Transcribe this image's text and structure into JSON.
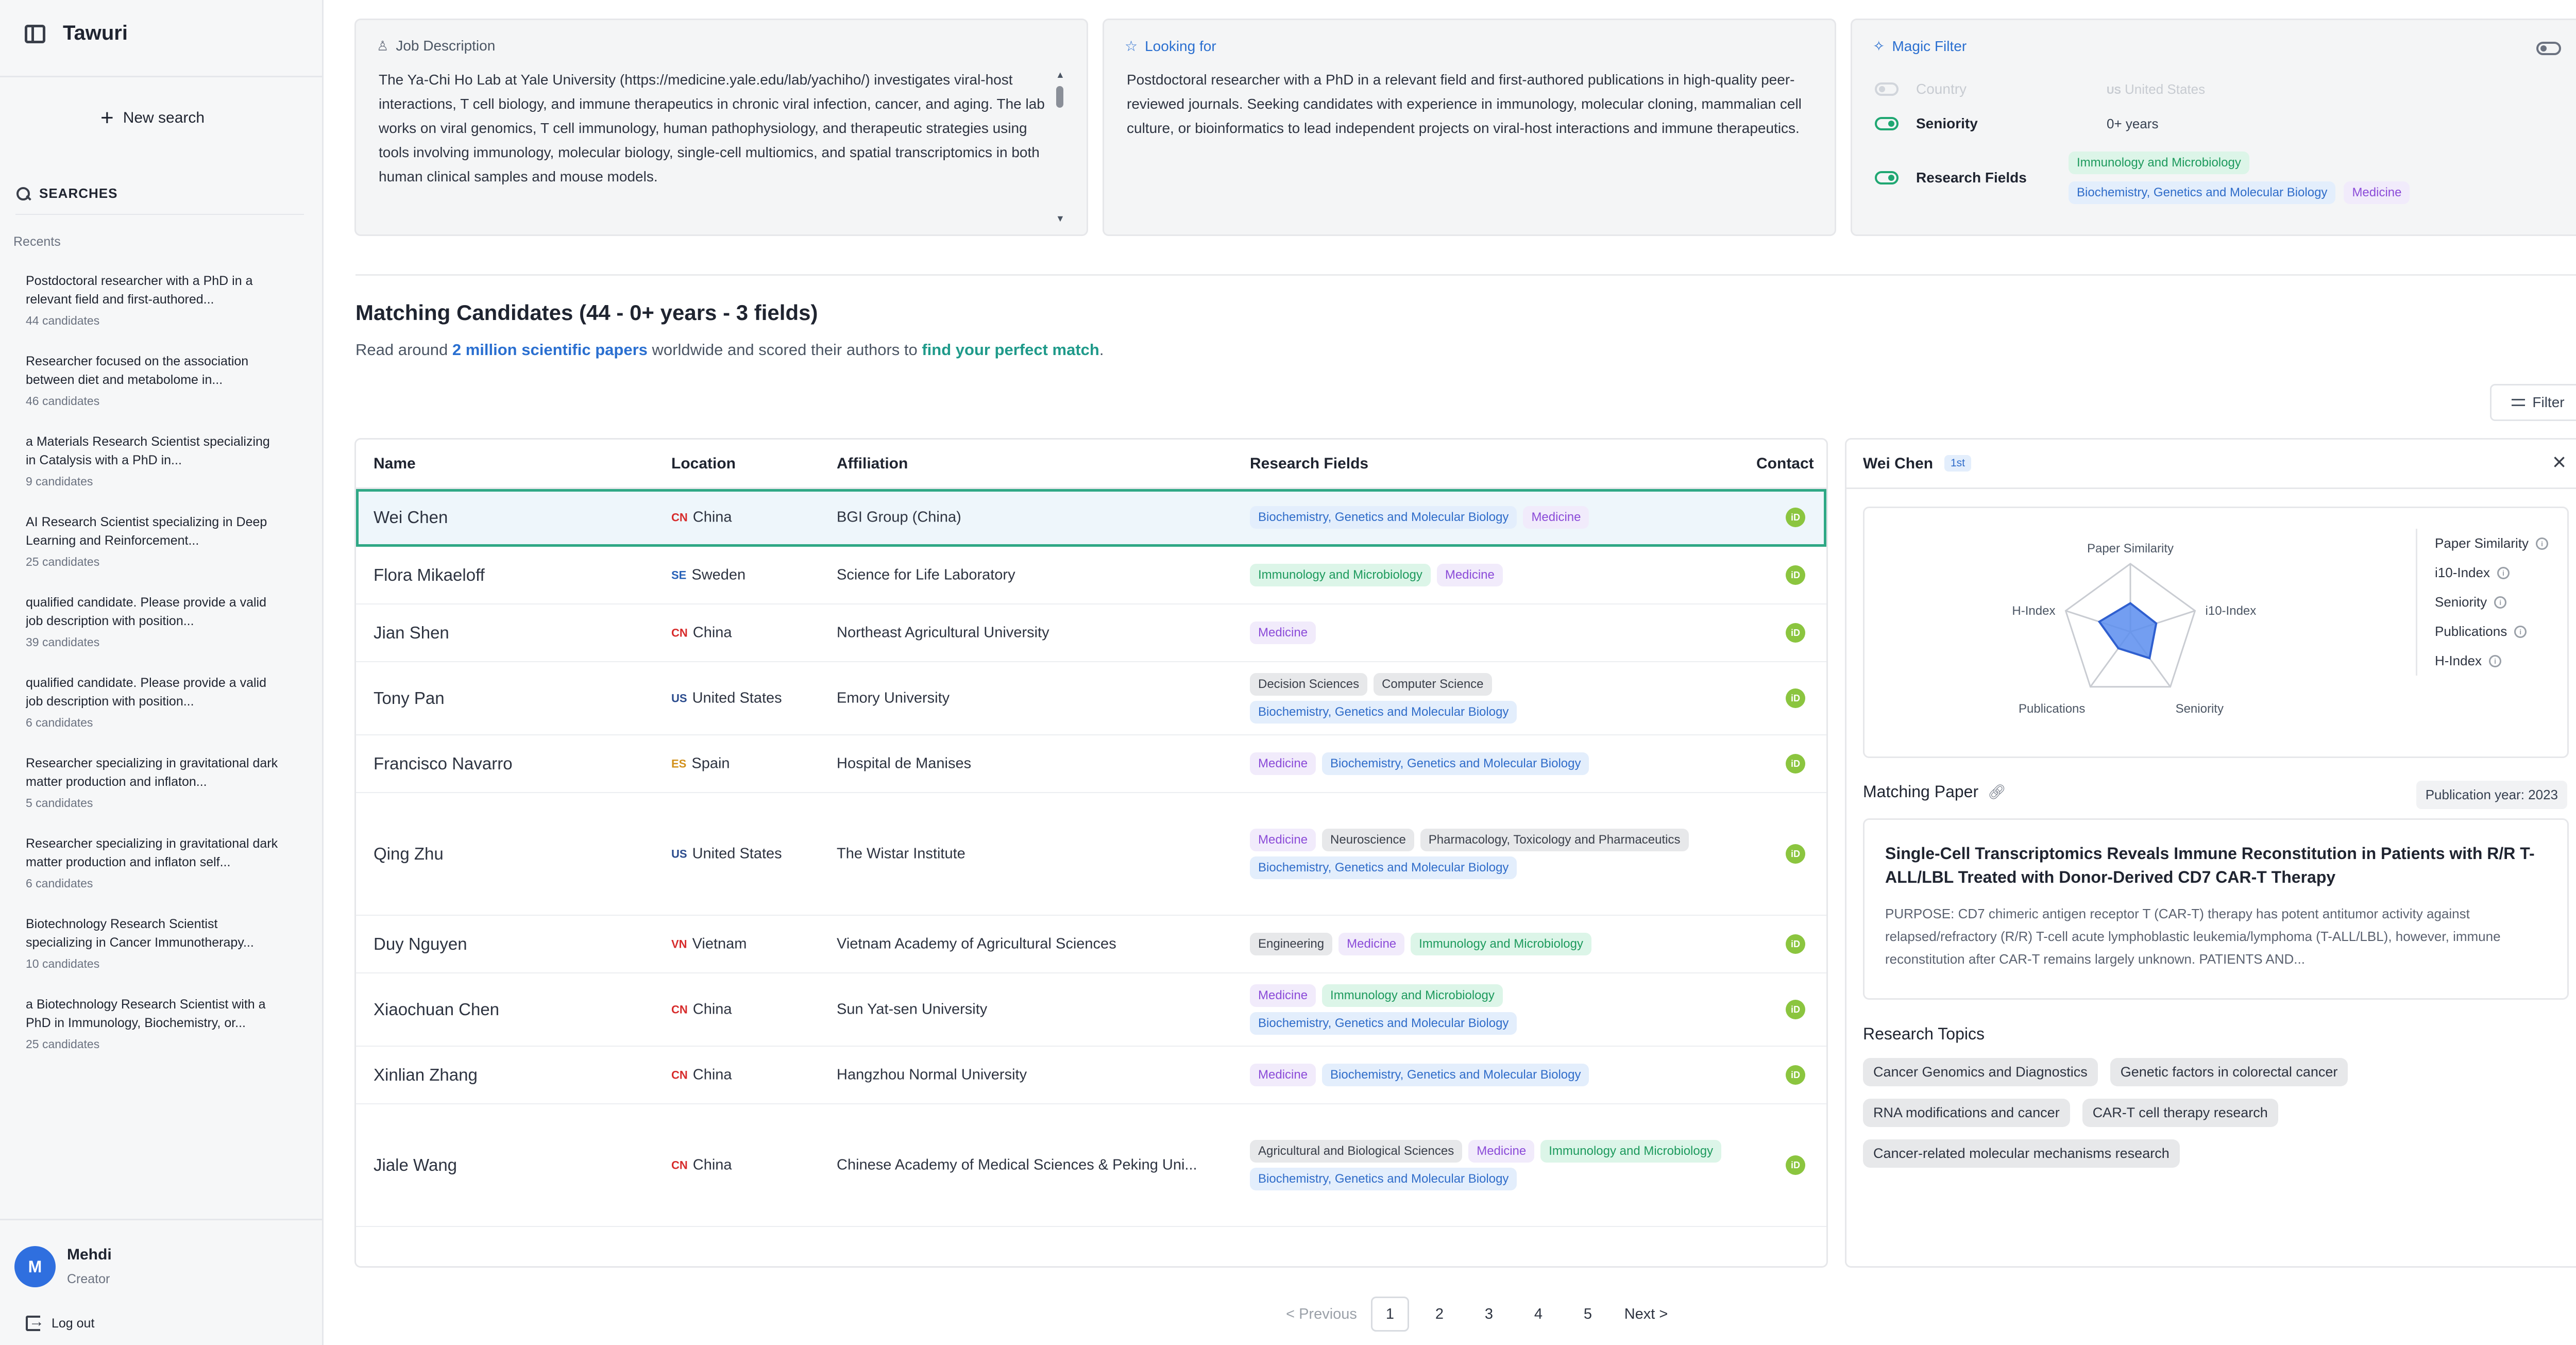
{
  "app": {
    "title": "Tawuri"
  },
  "sidebar": {
    "new_search": "New search",
    "searches_header": "SEARCHES",
    "recents_label": "Recents",
    "recents": [
      {
        "title": "Postdoctoral researcher with a PhD in a relevant field and first-authored...",
        "count": "44 candidates"
      },
      {
        "title": "Researcher focused on the association between diet and metabolome in...",
        "count": "46 candidates"
      },
      {
        "title": "a Materials Research Scientist specializing in Catalysis with a PhD in...",
        "count": "9 candidates"
      },
      {
        "title": "AI Research Scientist specializing in Deep Learning and Reinforcement...",
        "count": "25 candidates"
      },
      {
        "title": "qualified candidate. Please provide a valid job description with position...",
        "count": "39 candidates"
      },
      {
        "title": "qualified candidate. Please provide a valid job description with position...",
        "count": "6 candidates"
      },
      {
        "title": "Researcher specializing in gravitational dark matter production and inflaton...",
        "count": "5 candidates"
      },
      {
        "title": "Researcher specializing in gravitational dark matter production and inflaton self...",
        "count": "6 candidates"
      },
      {
        "title": "Biotechnology Research Scientist specializing in Cancer Immunotherapy...",
        "count": "10 candidates"
      },
      {
        "title": "a Biotechnology Research Scientist with a PhD in Immunology, Biochemistry, or...",
        "count": "25 candidates"
      }
    ],
    "user": {
      "initial": "M",
      "name": "Mehdi",
      "role": "Creator"
    },
    "logout": "Log out"
  },
  "job_description": {
    "title": "Job Description",
    "text": "The Ya-Chi Ho Lab at Yale University (https://medicine.yale.edu/lab/yachiho/) investigates viral-host interactions, T cell biology, and immune therapeutics in chronic viral infection, cancer, and aging. The lab works on viral genomics, T cell immunology, human pathophysiology, and therapeutic strategies using tools involving immunology, molecular biology, single-cell multiomics, and spatial transcriptomics in both human clinical samples and mouse models."
  },
  "looking_for": {
    "title": "Looking for",
    "text": "Postdoctoral researcher with a PhD in a relevant field and first-authored publications in high-quality peer-reviewed journals. Seeking candidates with experience in immunology, molecular cloning, mammalian cell culture, or bioinformatics to lead independent projects on viral-host interactions and immune therapeutics."
  },
  "magic_filter": {
    "title": "Magic Filter",
    "country_label": "Country",
    "country_flag": "US",
    "country_value": "United States",
    "seniority_label": "Seniority",
    "seniority_value": "0+ years",
    "fields_label": "Research Fields",
    "fields": [
      {
        "label": "Immunology and Microbiology",
        "color": "green"
      },
      {
        "label": "Biochemistry, Genetics and Molecular Biology",
        "color": "blue"
      },
      {
        "label": "Medicine",
        "color": "purple"
      }
    ]
  },
  "main": {
    "title": "Matching Candidates (44 - 0+ years - 3 fields)",
    "sub_prefix": "Read around ",
    "sub_highlight1": "2 million scientific papers",
    "sub_middle": " worldwide and scored their authors to ",
    "sub_highlight2": "find your perfect match",
    "sub_suffix": ".",
    "filter_label": "Filter"
  },
  "table": {
    "headers": {
      "name": "Name",
      "location": "Location",
      "affiliation": "Affiliation",
      "fields": "Research Fields",
      "contact": "Contact"
    },
    "contact_badge": "iD",
    "rows": [
      {
        "name": "Wei Chen",
        "flag": "CN",
        "flag_class": "cn",
        "location": "China",
        "affiliation": "BGI Group (China)",
        "fields": [
          [
            "Biochemistry, Genetics and Molecular Biology",
            "blue"
          ],
          [
            "Medicine",
            "purple"
          ]
        ],
        "selected": true
      },
      {
        "name": "Flora Mikaeloff",
        "flag": "SE",
        "flag_class": "se",
        "location": "Sweden",
        "affiliation": "Science for Life Laboratory",
        "fields": [
          [
            "Immunology and Microbiology",
            "green"
          ],
          [
            "Medicine",
            "purple"
          ]
        ]
      },
      {
        "name": "Jian Shen",
        "flag": "CN",
        "flag_class": "cn",
        "location": "China",
        "affiliation": "Northeast Agricultural University",
        "fields": [
          [
            "Medicine",
            "purple"
          ]
        ]
      },
      {
        "name": "Tony Pan",
        "flag": "US",
        "flag_class": "us",
        "location": "United States",
        "affiliation": "Emory University",
        "fields": [
          [
            "Decision Sciences",
            "gray"
          ],
          [
            "Computer Science",
            "gray"
          ],
          [
            "Biochemistry, Genetics and Molecular Biology",
            "blue"
          ]
        ]
      },
      {
        "name": "Francisco Navarro",
        "flag": "ES",
        "flag_class": "es",
        "location": "Spain",
        "affiliation": "Hospital de Manises",
        "fields": [
          [
            "Medicine",
            "purple"
          ],
          [
            "Biochemistry, Genetics and Molecular Biology",
            "blue"
          ]
        ]
      },
      {
        "name": "Qing Zhu",
        "flag": "US",
        "flag_class": "us",
        "location": "United States",
        "affiliation": "The Wistar Institute",
        "fields": [
          [
            "Medicine",
            "purple"
          ],
          [
            "Neuroscience",
            "gray"
          ],
          [
            "Pharmacology, Toxicology and Pharmaceutics",
            "gray"
          ],
          [
            "Biochemistry, Genetics and Molecular Biology",
            "blue"
          ]
        ]
      },
      {
        "name": "Duy Nguyen",
        "flag": "VN",
        "flag_class": "vn",
        "location": "Vietnam",
        "affiliation": "Vietnam Academy of Agricultural Sciences",
        "fields": [
          [
            "Engineering",
            "gray"
          ],
          [
            "Medicine",
            "purple"
          ],
          [
            "Immunology and Microbiology",
            "green"
          ]
        ]
      },
      {
        "name": "Xiaochuan Chen",
        "flag": "CN",
        "flag_class": "cn",
        "location": "China",
        "affiliation": "Sun Yat-sen University",
        "fields": [
          [
            "Medicine",
            "purple"
          ],
          [
            "Immunology and Microbiology",
            "green"
          ],
          [
            "Biochemistry, Genetics and Molecular Biology",
            "blue"
          ]
        ]
      },
      {
        "name": "Xinlian Zhang",
        "flag": "CN",
        "flag_class": "cn",
        "location": "China",
        "affiliation": "Hangzhou Normal University",
        "fields": [
          [
            "Medicine",
            "purple"
          ],
          [
            "Biochemistry, Genetics and Molecular Biology",
            "blue"
          ]
        ]
      },
      {
        "name": "Jiale Wang",
        "flag": "CN",
        "flag_class": "cn",
        "location": "China",
        "affiliation": "Chinese Academy of Medical Sciences & Peking Uni...",
        "fields": [
          [
            "Agricultural and Biological Sciences",
            "gray"
          ],
          [
            "Medicine",
            "purple"
          ],
          [
            "Immunology and Microbiology",
            "green"
          ],
          [
            "Biochemistry, Genetics and Molecular Biology",
            "blue"
          ]
        ]
      }
    ]
  },
  "detail": {
    "name": "Wei Chen",
    "badge": "1st",
    "radar": {
      "axes": [
        "Paper Similarity",
        "i10-Index",
        "Seniority",
        "Publications",
        "H-Index"
      ],
      "values": [
        0.42,
        0.4,
        0.48,
        0.3,
        0.48
      ]
    },
    "legend": [
      "Paper Similarity",
      "i10-Index",
      "Seniority",
      "Publications",
      "H-Index"
    ],
    "info_glyph": "i",
    "matching_paper_label": "Matching Paper",
    "publication_year": "Publication year: 2023",
    "paper_title": "Single-Cell Transcriptomics Reveals Immune Reconstitution in Patients with R/R T-ALL/LBL Treated with Donor-Derived CD7 CAR-T Therapy",
    "paper_abstract": "PURPOSE: CD7 chimeric antigen receptor T (CAR-T) therapy has potent antitumor activity against relapsed/refractory (R/R) T-cell acute lymphoblastic leukemia/lymphoma (T-ALL/LBL), however, immune reconstitution after CAR-T remains largely unknown. PATIENTS AND...",
    "topics_label": "Research Topics",
    "topics": [
      "Cancer Genomics and Diagnostics",
      "Genetic factors in colorectal cancer",
      "RNA modifications and cancer",
      "CAR-T cell therapy research",
      "Cancer-related molecular mechanisms research"
    ]
  },
  "pagination": {
    "prev": "< Previous",
    "pages": [
      "1",
      "2",
      "3",
      "4",
      "5"
    ],
    "active": "1",
    "next": "Next >"
  },
  "colors": {
    "accent_blue": "#2a6fd0",
    "accent_green": "#1fa772",
    "selected_outline": "#2fa885",
    "radar_fill": "#5b8def"
  }
}
